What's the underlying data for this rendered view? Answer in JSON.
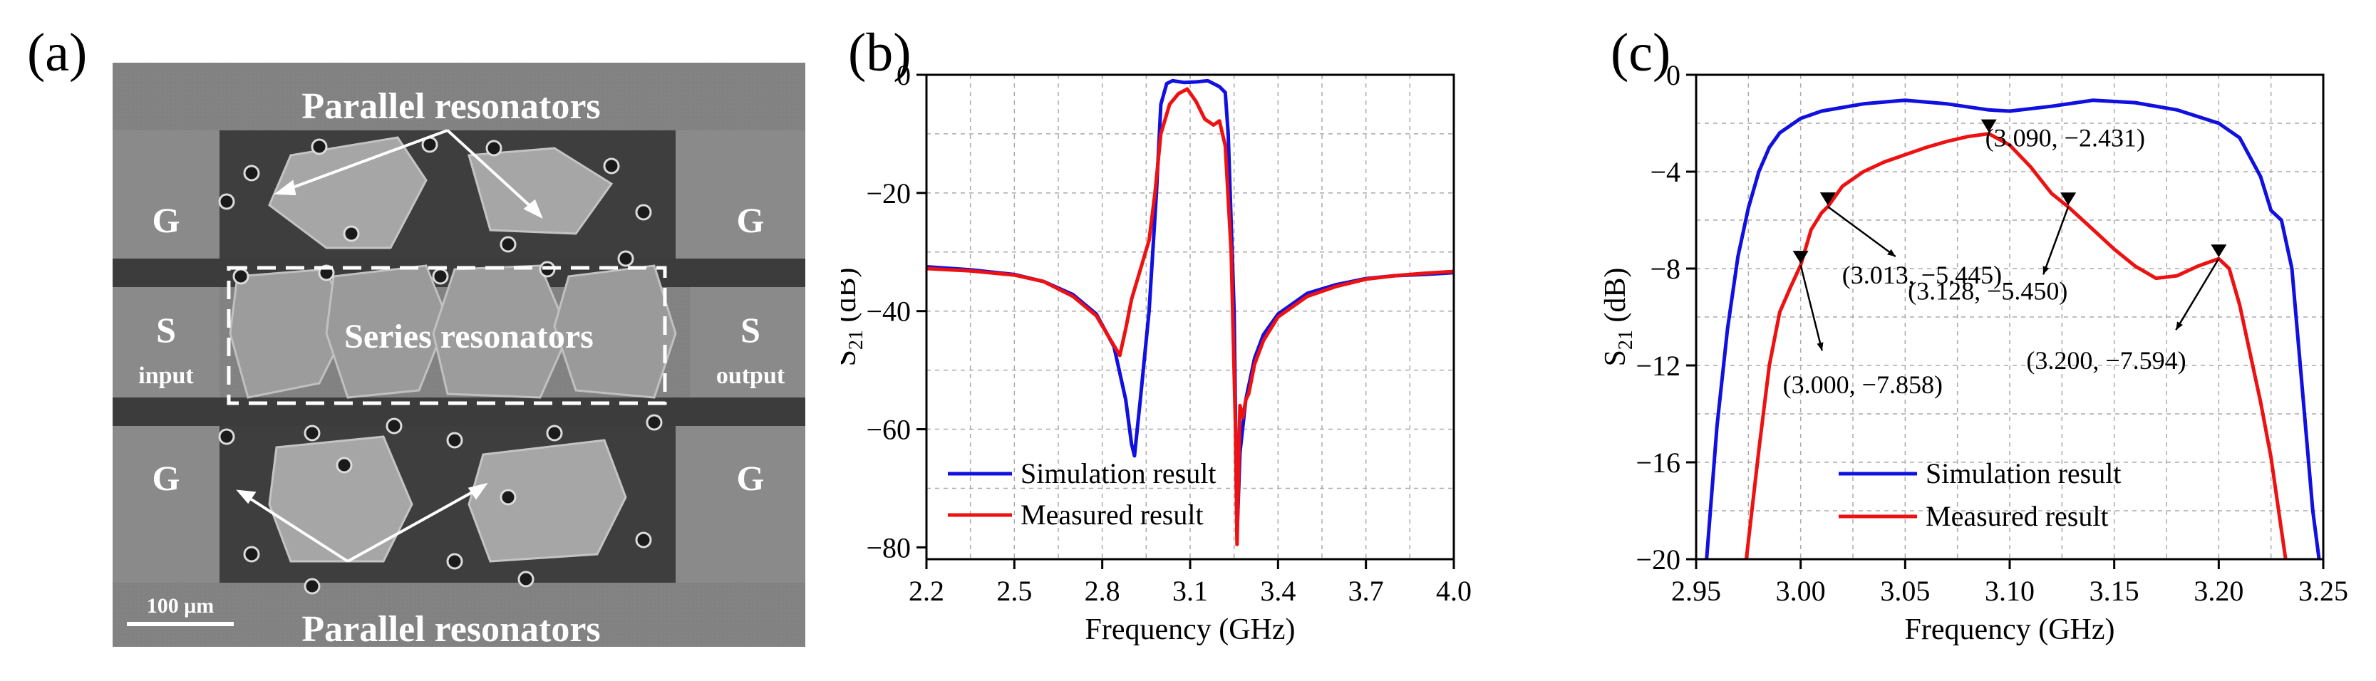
{
  "panels": {
    "a": "(a)",
    "b": "(b)",
    "c": "(c)"
  },
  "sem": {
    "top_title": "Parallel resonators",
    "bottom_title": "Parallel resonators",
    "series_label": "Series resonators",
    "g_label": "G",
    "s_label": "S",
    "input_label": "input",
    "output_label": "output",
    "scale_bar": "100 μm"
  },
  "colors": {
    "simulation": "#1010e0",
    "measured": "#ee1111"
  },
  "chart_data": [
    {
      "id": "b",
      "type": "line",
      "title": "",
      "xlabel": "Frequency (GHz)",
      "ylabel_main": "S",
      "ylabel_sub": "21",
      "ylabel_unit": " (dB)",
      "xlim": [
        2.2,
        4.0
      ],
      "ylim": [
        -82,
        0
      ],
      "xticks": [
        2.2,
        2.5,
        2.8,
        3.1,
        3.4,
        3.7,
        4.0
      ],
      "xtick_labels": [
        "2.2",
        "2.5",
        "2.8",
        "3.1",
        "3.4",
        "3.7",
        "4.0"
      ],
      "yticks": [
        0,
        -20,
        -40,
        -60,
        -80
      ],
      "ytick_labels": [
        "0",
        "−20",
        "−40",
        "−60",
        "−80"
      ],
      "grid": true,
      "legend": {
        "position": "bottom-left",
        "entries": [
          "Simulation result",
          "Measured result"
        ]
      },
      "series": [
        {
          "name": "Simulation result",
          "color": "#1010e0",
          "x": [
            2.2,
            2.35,
            2.5,
            2.6,
            2.7,
            2.78,
            2.84,
            2.88,
            2.9,
            2.91,
            2.93,
            2.96,
            2.985,
            3.0,
            3.02,
            3.04,
            3.08,
            3.12,
            3.16,
            3.2,
            3.22,
            3.23,
            3.25,
            3.26,
            3.27,
            3.29,
            3.32,
            3.35,
            3.4,
            3.5,
            3.6,
            3.7,
            3.8,
            3.9,
            4.0
          ],
          "values": [
            -32.5,
            -33.0,
            -33.8,
            -35.0,
            -37.2,
            -40.5,
            -46.0,
            -55.0,
            -62.5,
            -64.5,
            -55.0,
            -40.0,
            -20.0,
            -5.0,
            -1.5,
            -1.0,
            -1.3,
            -1.2,
            -1.0,
            -2.0,
            -3.0,
            -10.0,
            -40.0,
            -78.0,
            -64.0,
            -55.0,
            -48.0,
            -44.0,
            -40.5,
            -37.0,
            -35.5,
            -34.5,
            -34.0,
            -33.8,
            -33.5
          ]
        },
        {
          "name": "Measured result",
          "color": "#ee1111",
          "x": [
            2.2,
            2.35,
            2.5,
            2.6,
            2.7,
            2.78,
            2.83,
            2.86,
            2.88,
            2.9,
            2.93,
            2.96,
            2.98,
            3.0,
            3.03,
            3.06,
            3.09,
            3.12,
            3.15,
            3.18,
            3.2,
            3.22,
            3.24,
            3.255,
            3.26,
            3.27,
            3.28,
            3.29,
            3.3,
            3.32,
            3.35,
            3.4,
            3.5,
            3.6,
            3.7,
            3.8,
            3.9,
            4.0
          ],
          "values": [
            -32.8,
            -33.2,
            -33.9,
            -35.0,
            -37.5,
            -40.8,
            -45.0,
            -47.5,
            -43.0,
            -38.0,
            -33.0,
            -28.0,
            -20.0,
            -10.0,
            -5.0,
            -3.2,
            -2.4,
            -4.5,
            -7.5,
            -8.5,
            -7.8,
            -12.0,
            -30.0,
            -60.0,
            -79.5,
            -56.0,
            -58.0,
            -55.0,
            -54.0,
            -49.0,
            -45.0,
            -41.0,
            -37.5,
            -35.8,
            -34.6,
            -34.0,
            -33.6,
            -33.3
          ]
        }
      ]
    },
    {
      "id": "c",
      "type": "line",
      "title": "",
      "xlabel": "Frequency (GHz)",
      "ylabel_main": "S",
      "ylabel_sub": "21",
      "ylabel_unit": " (dB)",
      "xlim": [
        2.95,
        3.25
      ],
      "ylim": [
        -20,
        0
      ],
      "xticks": [
        2.95,
        3.0,
        3.05,
        3.1,
        3.15,
        3.2,
        3.25
      ],
      "xtick_labels": [
        "2.95",
        "3.00",
        "3.05",
        "3.10",
        "3.15",
        "3.20",
        "3.25"
      ],
      "yticks": [
        0,
        -4,
        -8,
        -12,
        -16,
        -20
      ],
      "ytick_labels": [
        "0",
        "−4",
        "−8",
        "−12",
        "−16",
        "−20"
      ],
      "grid": true,
      "legend": {
        "position": "bottom-center",
        "entries": [
          "Simulation result",
          "Measured result"
        ]
      },
      "series": [
        {
          "name": "Simulation result",
          "color": "#1010e0",
          "x": [
            2.955,
            2.96,
            2.965,
            2.97,
            2.975,
            2.98,
            2.985,
            2.99,
            3.0,
            3.01,
            3.02,
            3.03,
            3.05,
            3.07,
            3.09,
            3.1,
            3.12,
            3.14,
            3.16,
            3.18,
            3.2,
            3.21,
            3.22,
            3.225,
            3.23,
            3.235,
            3.24,
            3.245,
            3.248
          ],
          "values": [
            -20.0,
            -14.5,
            -10.5,
            -7.5,
            -5.5,
            -4.0,
            -3.0,
            -2.4,
            -1.8,
            -1.5,
            -1.35,
            -1.2,
            -1.05,
            -1.2,
            -1.45,
            -1.5,
            -1.3,
            -1.05,
            -1.15,
            -1.45,
            -2.0,
            -2.6,
            -4.2,
            -5.6,
            -6.0,
            -8.0,
            -13.0,
            -18.0,
            -20.0
          ]
        },
        {
          "name": "Measured result",
          "color": "#ee1111",
          "x": [
            2.974,
            2.98,
            2.985,
            2.99,
            2.995,
            3.0,
            3.005,
            3.01,
            3.013,
            3.02,
            3.03,
            3.04,
            3.05,
            3.06,
            3.07,
            3.08,
            3.09,
            3.1,
            3.11,
            3.12,
            3.128,
            3.14,
            3.15,
            3.16,
            3.17,
            3.18,
            3.19,
            3.2,
            3.205,
            3.21,
            3.215,
            3.22,
            3.225,
            3.23,
            3.232
          ],
          "values": [
            -20.0,
            -15.5,
            -12.0,
            -9.8,
            -8.8,
            -7.858,
            -6.4,
            -5.7,
            -5.445,
            -4.6,
            -4.0,
            -3.6,
            -3.3,
            -3.0,
            -2.75,
            -2.55,
            -2.431,
            -2.9,
            -3.8,
            -4.9,
            -5.45,
            -6.4,
            -7.2,
            -7.9,
            -8.4,
            -8.3,
            -7.9,
            -7.594,
            -8.0,
            -9.5,
            -11.5,
            -13.5,
            -15.8,
            -18.8,
            -20.0
          ]
        }
      ],
      "annotations": [
        {
          "label": "(3.090, −2.431)",
          "x": 3.09,
          "y": -2.431
        },
        {
          "label": "(3.013, −5.445)",
          "x": 3.013,
          "y": -5.445
        },
        {
          "label": "(3.128, −5.450)",
          "x": 3.128,
          "y": -5.45
        },
        {
          "label": "(3.000, −7.858)",
          "x": 3.0,
          "y": -7.858
        },
        {
          "label": "(3.200, −7.594)",
          "x": 3.2,
          "y": -7.594
        }
      ]
    }
  ]
}
